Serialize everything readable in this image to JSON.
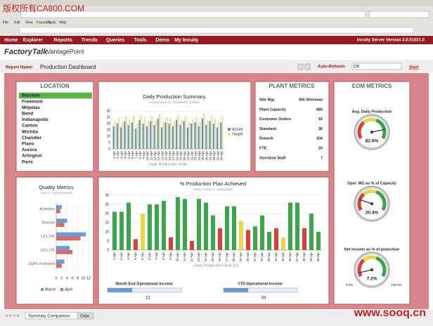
{
  "watermark": "版权所有CA800.COM",
  "browser": {
    "menu": [
      "File",
      "Edit",
      "View",
      "Favorites",
      "Tools",
      "Help"
    ]
  },
  "nav": {
    "items": [
      "Home",
      "Explorer",
      "Reports",
      "Trends",
      "Queries",
      "Tools",
      "Demo",
      "My Incuity"
    ],
    "version": "Incuity Server Version 3.0.01021.0"
  },
  "logo": {
    "brand": "FactoryTalk",
    "product": "VantagePoint"
  },
  "report": {
    "label": "Report Name:",
    "name": "Production Dashboard",
    "refresh_label": "Auto-Refresh:",
    "refresh_value": "Off",
    "start": "Start"
  },
  "location": {
    "title": "LOCATION",
    "selected": 0,
    "items": [
      "Barstow",
      "Freemont",
      "Milpetas",
      "Bend",
      "Indianapolis",
      "Canton",
      "Wichita",
      "Chandler",
      "Plano",
      "Aurora",
      "Arlington",
      "Paris"
    ]
  },
  "plant_metrics": {
    "title": "PLANT METRICS",
    "rows": [
      [
        "Site Mgr.",
        "Bill Sherman"
      ],
      [
        "Plant Capacity",
        465
      ],
      [
        "Customer Orders",
        16
      ],
      [
        "Standard",
        36
      ],
      [
        "Rework",
        104
      ],
      [
        "FTE",
        20
      ],
      [
        "Overtime Staff",
        7
      ]
    ]
  },
  "eom": {
    "title": "EOM METRICS",
    "range": {
      "min": {
        "value": 0,
        "label": "0.0%"
      },
      "max": {
        "value": 100,
        "label": "100.0%"
      }
    },
    "gauges": [
      {
        "title": "Avg. Daily Production",
        "value": 82.6,
        "value_label": "82.6%"
      },
      {
        "title": "Oper. MG as % of Capacity",
        "value": 20.4,
        "value_label": "20.4%"
      },
      {
        "title": "Net Income as % of poduction",
        "value": 7.2,
        "value_label": "7.2%"
      }
    ]
  },
  "charts": [
    {
      "type": "bar",
      "title": "Daily Production Summary",
      "subtitle": "Actual (blue) vs. Scheduled (yellow)",
      "x_label": "Daily Production Units",
      "categories": [
        "1-Apr",
        "2-Apr",
        "3-Apr",
        "4-Apr",
        "5-Apr",
        "6-Apr",
        "7-Apr",
        "8-Apr",
        "9-Apr",
        "10-Apr",
        "11-Apr",
        "12-Apr",
        "13-Apr",
        "14-Apr",
        "15-Apr",
        "16-Apr",
        "17-Apr",
        "18-Apr",
        "19-Apr",
        "20-Apr",
        "21-Apr",
        "22-Apr",
        "23-Apr",
        "24-Apr",
        "25-Apr",
        "26-Apr",
        "27-Apr",
        "28-Apr",
        "29-Apr",
        "30-Apr"
      ],
      "series": [
        {
          "name": "Actual",
          "color": "#5b8fd0",
          "values": [
            18,
            20,
            17,
            22,
            19,
            21,
            16,
            23,
            20,
            18,
            22,
            19,
            24,
            17,
            21,
            20,
            18,
            23,
            19,
            22,
            17,
            20,
            21,
            18,
            24,
            19,
            22,
            20,
            17,
            21
          ]
        },
        {
          "name": "Target",
          "color": "#ecdf8c",
          "values": [
            22,
            24,
            21,
            25,
            23,
            26,
            20,
            27,
            24,
            22,
            26,
            23,
            28,
            21,
            25,
            24,
            22,
            27,
            23,
            26,
            21,
            24,
            25,
            22,
            28,
            23,
            26,
            24,
            21,
            25
          ]
        }
      ],
      "ylim": [
        0,
        30
      ],
      "yticks": [
        0,
        5,
        10,
        15,
        20,
        25,
        30
      ],
      "legend": "right"
    },
    {
      "type": "bar",
      "title": "% Production Plan Achieved",
      "subtitle": "(Daily Actual vs. Scheduled)",
      "x_label": "Daily Production Goal (%)",
      "categories": [
        "1-Apr",
        "2-Apr",
        "3-Apr",
        "4-Apr",
        "5-Apr",
        "6-Apr",
        "7-Apr",
        "8-Apr",
        "9-Apr",
        "10-Apr",
        "11-Apr",
        "12-Apr",
        "13-Apr",
        "14-Apr",
        "15-Apr",
        "16-Apr",
        "17-Apr",
        "18-Apr",
        "19-Apr",
        "20-Apr",
        "21-Apr",
        "22-Apr",
        "23-Apr",
        "24-Apr",
        "25-Apr",
        "26-Apr",
        "27-Apr",
        "28-Apr",
        "29-Apr",
        "30-Apr"
      ],
      "values": [
        21,
        21,
        26,
        6,
        20,
        25,
        25,
        27,
        7,
        29,
        28,
        5,
        28,
        26,
        19,
        12,
        24,
        24,
        16,
        11,
        13,
        19,
        10,
        12,
        7,
        26,
        26,
        12,
        20,
        10
      ],
      "colors": [
        "#3aa64a",
        "#3aa64a",
        "#3aa64a",
        "#d9403a",
        "#e8d84a",
        "#3aa64a",
        "#3aa64a",
        "#3aa64a",
        "#d9403a",
        "#3aa64a",
        "#3aa64a",
        "#d9403a",
        "#3aa64a",
        "#3aa64a",
        "#3aa64a",
        "#d9403a",
        "#3aa64a",
        "#3aa64a",
        "#e8d84a",
        "#d9403a",
        "#3aa64a",
        "#3aa64a",
        "#3aa64a",
        "#d9403a",
        "#e8d84a",
        "#3aa64a",
        "#3aa64a",
        "#d9403a",
        "#3aa64a",
        "#3aa64a"
      ],
      "ylim": [
        0,
        30
      ],
      "yticks": [
        0,
        5,
        10,
        15,
        20,
        25,
        30
      ]
    },
    {
      "type": "hbar",
      "title": "Quality Metrics",
      "subtitle": "Last vs. Current Month",
      "categories": [
        "Activities",
        "Rework",
        "LCL OK",
        "UCL OK",
        "SQPs Followed"
      ],
      "series": [
        {
          "name": "March",
          "color": "#6b9bd1",
          "values": [
            2,
            4,
            11,
            5,
            3
          ]
        },
        {
          "name": "April",
          "color": "#d46a6a",
          "values": [
            1.5,
            3,
            9,
            6,
            2
          ]
        }
      ],
      "xlim": [
        0,
        12
      ],
      "xticks": [
        0,
        2,
        4,
        6,
        8,
        10,
        12
      ],
      "legend": "bottom"
    }
  ],
  "sliders": [
    {
      "title": "Month End Operational Income",
      "value": 12
    },
    {
      "title": "YTD Operational Income",
      "value": 34
    }
  ],
  "tabs": [
    "Summary Comparison",
    "Data"
  ],
  "footer_watermark": "www.sooq.cn"
}
